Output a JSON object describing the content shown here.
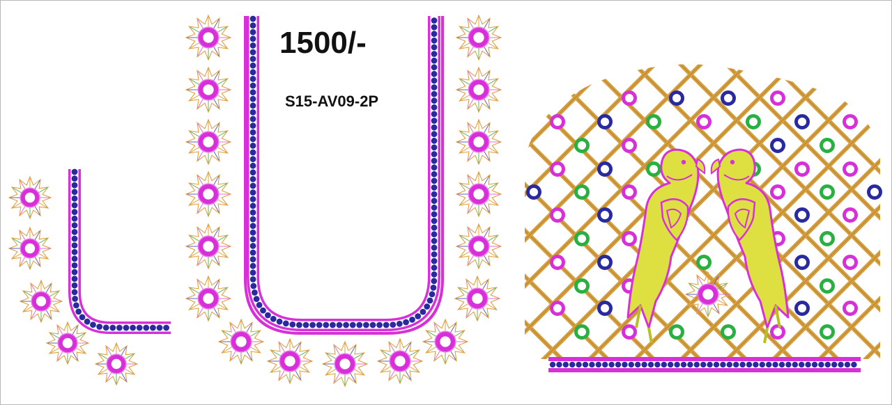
{
  "price": "1500/-",
  "design_code": "S15-AV09-2P",
  "colors": {
    "magenta": "#d830d8",
    "pink_light": "#f070f0",
    "navy": "#2a2aa0",
    "lattice": "#d6a040",
    "lattice_dark": "#a07020",
    "green": "#28b040",
    "parrot": "#dde040",
    "parrot_edge": "#b8c020",
    "petal_pink": "#e070d0",
    "petal_orange": "#e0a040",
    "petal_blue": "#6060c0",
    "petal_green": "#60b060"
  }
}
